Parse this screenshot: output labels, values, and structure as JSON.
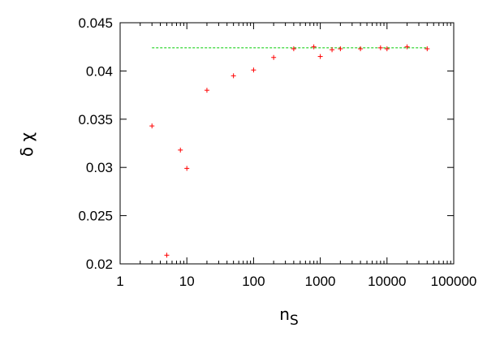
{
  "chart_data": {
    "type": "scatter",
    "title": "",
    "xlabel": "n",
    "xlabel_subscript": "S",
    "ylabel": "δ χ",
    "xscale": "log",
    "xlim": [
      1,
      100000
    ],
    "ylim": [
      0.02,
      0.045
    ],
    "xticks": [
      1,
      10,
      100,
      1000,
      10000,
      100000
    ],
    "xtick_labels": [
      "1",
      "10",
      "100",
      "1000",
      "10000",
      "100000"
    ],
    "yticks": [
      0.02,
      0.025,
      0.03,
      0.035,
      0.04,
      0.045
    ],
    "ytick_labels": [
      "0.02",
      "0.025",
      "0.03",
      "0.035",
      "0.04",
      "0.045"
    ],
    "grid": false,
    "series": [
      {
        "marker": "+",
        "color": "#ff0000",
        "x": [
          3,
          5,
          8,
          10,
          20,
          50,
          100,
          200,
          400,
          800,
          1000,
          1500,
          2000,
          4000,
          8000,
          10000,
          20000,
          40000
        ],
        "y": [
          0.0343,
          0.0209,
          0.0318,
          0.0299,
          0.038,
          0.0395,
          0.0401,
          0.0414,
          0.0423,
          0.0425,
          0.0415,
          0.0422,
          0.0423,
          0.0423,
          0.0424,
          0.0423,
          0.0425,
          0.0423
        ]
      }
    ],
    "reference_line": {
      "color": "#00cc00",
      "style": "dashed",
      "y": 0.0424,
      "x_from": 3,
      "x_to": 40000
    }
  }
}
